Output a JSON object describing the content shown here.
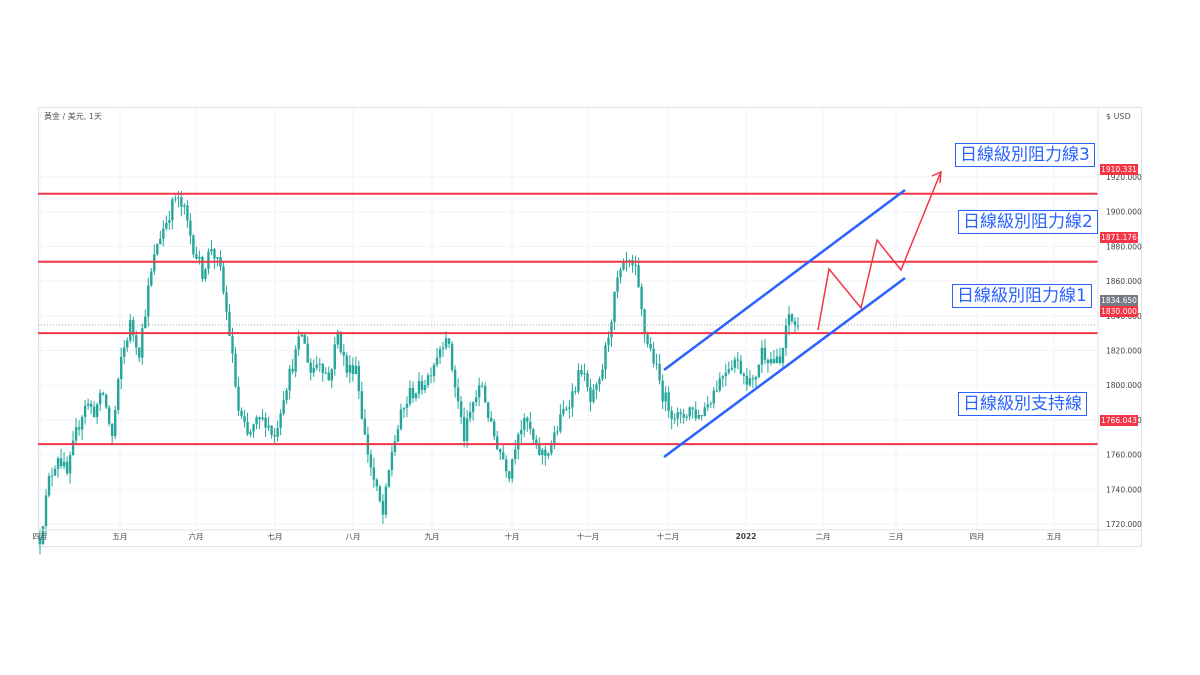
{
  "chart_data": {
    "type": "candlestick",
    "symbol_label": "黃金 / 美元, 1天",
    "currency": "USD",
    "x_tick_labels": [
      "四月",
      "五月",
      "六月",
      "七月",
      "八月",
      "九月",
      "十月",
      "十一月",
      "十二月",
      "2022",
      "二月",
      "三月",
      "四月",
      "五月"
    ],
    "y_tick_labels": [
      "1920.000",
      "1900.000",
      "1880.000",
      "1860.000",
      "1840.000",
      "1820.000",
      "1800.000",
      "1780.000",
      "1760.000",
      "1740.000",
      "1720.000"
    ],
    "ylim": [
      1705,
      1945
    ],
    "close_path": [
      1712,
      1745,
      1760,
      1748,
      1772,
      1790,
      1785,
      1795,
      1770,
      1815,
      1835,
      1820,
      1855,
      1882,
      1895,
      1908,
      1900,
      1880,
      1865,
      1880,
      1865,
      1830,
      1785,
      1770,
      1778,
      1780,
      1770,
      1795,
      1812,
      1830,
      1808,
      1815,
      1803,
      1830,
      1808,
      1812,
      1770,
      1745,
      1725,
      1762,
      1782,
      1795,
      1798,
      1805,
      1818,
      1830,
      1800,
      1770,
      1790,
      1800,
      1775,
      1762,
      1750,
      1775,
      1778,
      1762,
      1760,
      1770,
      1785,
      1795,
      1810,
      1790,
      1800,
      1830,
      1860,
      1870,
      1865,
      1830,
      1815,
      1795,
      1785,
      1780,
      1787,
      1782,
      1790,
      1800,
      1810,
      1815,
      1807,
      1800,
      1820,
      1815,
      1812,
      1840,
      1832
    ],
    "current_price": "1834.650",
    "levels": [
      {
        "name": "日線級別阻力線3",
        "value": 1910.331,
        "tag": "1910.331"
      },
      {
        "name": "日線級別阻力線2",
        "value": 1871.176,
        "tag": "1871.176"
      },
      {
        "name": "日線級別阻力線1",
        "value": 1830.0,
        "tag": "1830.000"
      },
      {
        "name": "日線級別支持線",
        "value": 1766.043,
        "tag": "1766.043"
      }
    ],
    "colors": {
      "up": "#26a69a",
      "level": "#f23645",
      "channel": "#2962ff",
      "projection": "#f23645",
      "price_tag": "#787b86"
    }
  }
}
